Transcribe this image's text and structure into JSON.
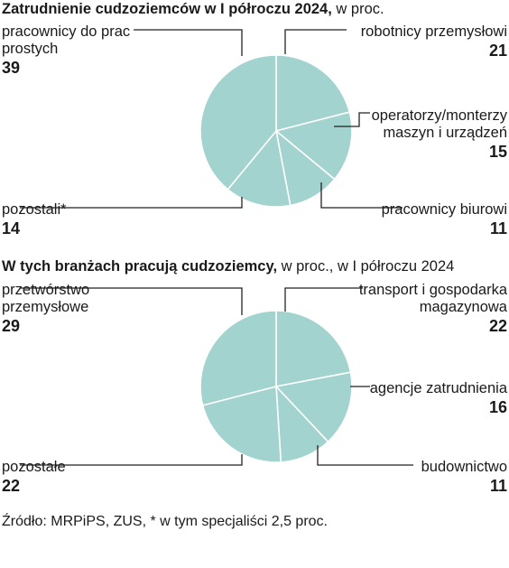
{
  "colors": {
    "slice": "#a3d3ce",
    "slice_stroke": "#ffffff",
    "leader": "#222222",
    "text": "#1a1a1a"
  },
  "chart1": {
    "title_bold": "Zatrudnienie cudzoziemców w I półroczu 2024,",
    "title_rest": " w proc.",
    "labels": [
      {
        "name": "pracownicy do prac\nprostych",
        "value": "39"
      },
      {
        "name": "robotnicy przemysłowi",
        "value": "21"
      },
      {
        "name": "operatorzy/monterzy\nmaszyn i urządzeń",
        "value": "15"
      },
      {
        "name": "pracownicy biurowi",
        "value": "11"
      },
      {
        "name": "pozostali*",
        "value": "14"
      }
    ]
  },
  "chart2": {
    "title_bold": "W tych branżach pracują cudzoziemcy,",
    "title_rest": " w proc., w I półroczu 2024",
    "labels": [
      {
        "name": "przetwórstwo\nprzemysłowe",
        "value": "29"
      },
      {
        "name": "transport i gospodarka\nmagazynowa",
        "value": "22"
      },
      {
        "name": "agencje zatrudnienia",
        "value": "16"
      },
      {
        "name": "budownictwo",
        "value": "11"
      },
      {
        "name": "pozostałe",
        "value": "22"
      }
    ]
  },
  "chart_data": [
    {
      "type": "pie",
      "title": "Zatrudnienie cudzoziemców w I półroczu 2024, w proc.",
      "categories": [
        "robotnicy przemysłowi",
        "operatorzy/monterzy maszyn i urządzeń",
        "pracownicy biurowi",
        "pozostali*",
        "pracownicy do prac prostych"
      ],
      "values": [
        21,
        15,
        11,
        14,
        39
      ]
    },
    {
      "type": "pie",
      "title": "W tych branżach pracują cudzoziemcy, w proc., w I półroczu 2024",
      "categories": [
        "transport i gospodarka magazynowa",
        "agencje zatrudnienia",
        "budownictwo",
        "pozostałe",
        "przetwórstwo przemysłowe"
      ],
      "values": [
        22,
        16,
        11,
        22,
        29
      ]
    }
  ],
  "footer": "Źródło: MRPiPS, ZUS, * w tym specjaliści 2,5 proc."
}
